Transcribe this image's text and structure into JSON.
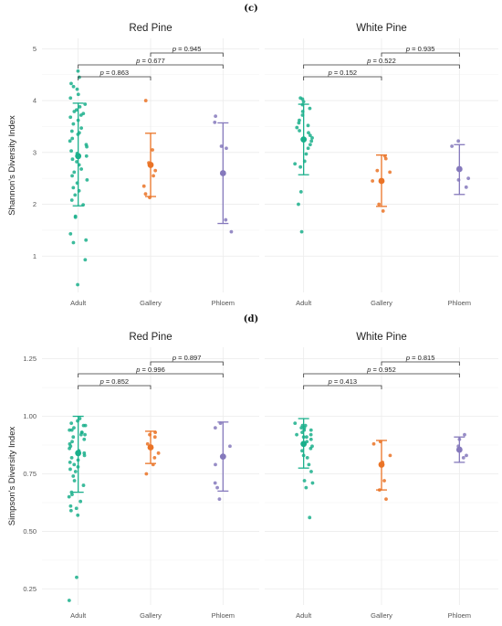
{
  "colors": {
    "Adult": "#1aaf8b",
    "Gallery": "#ea7326",
    "Phloem": "#8579bc",
    "grid": "#ebebeb",
    "bracket": "#333333"
  },
  "chart_data": [
    {
      "type": "scatter",
      "panel_label": "(c)",
      "ylabel": "Shannon's Diversity Index",
      "ylim": [
        0.3,
        5.2
      ],
      "yticks": [
        1,
        2,
        3,
        4,
        5
      ],
      "categories": [
        "Adult",
        "Gallery",
        "Phloem"
      ],
      "facets": [
        {
          "title": "Red Pine",
          "groups": [
            {
              "name": "Adult",
              "mean": 2.93,
              "lower": 1.97,
              "upper": 3.95,
              "points": [
                4.57,
                4.45,
                4.33,
                4.27,
                4.22,
                4.12,
                4.05,
                3.93,
                3.88,
                3.82,
                3.79,
                3.75,
                3.72,
                3.68,
                3.62,
                3.55,
                3.47,
                3.41,
                3.38,
                3.35,
                3.27,
                3.22,
                3.15,
                3.11,
                3.03,
                2.98,
                2.93,
                2.87,
                2.82,
                2.76,
                2.68,
                2.62,
                2.55,
                2.47,
                2.41,
                2.32,
                2.26,
                2.18,
                2.08,
                1.99,
                1.77,
                1.75,
                1.43,
                1.31,
                1.26,
                0.93,
                0.45
              ]
            },
            {
              "name": "Gallery",
              "mean": 2.76,
              "lower": 2.15,
              "upper": 3.37,
              "points": [
                4.0,
                3.05,
                2.8,
                2.65,
                2.55,
                2.35,
                2.2,
                2.13
              ]
            },
            {
              "name": "Phloem",
              "mean": 2.6,
              "lower": 1.63,
              "upper": 3.57,
              "points": [
                3.7,
                3.58,
                3.12,
                3.08,
                1.7,
                1.47
              ]
            }
          ],
          "brackets": [
            {
              "from": "Adult",
              "to": "Gallery",
              "p": "0.863"
            },
            {
              "from": "Adult",
              "to": "Phloem",
              "p": "0.677"
            },
            {
              "from": "Gallery",
              "to": "Phloem",
              "p": "0.945"
            }
          ]
        },
        {
          "title": "White Pine",
          "groups": [
            {
              "name": "Adult",
              "mean": 3.25,
              "lower": 2.57,
              "upper": 3.93,
              "points": [
                4.05,
                4.03,
                3.98,
                3.92,
                3.85,
                3.79,
                3.72,
                3.62,
                3.57,
                3.52,
                3.48,
                3.42,
                3.38,
                3.33,
                3.28,
                3.22,
                3.15,
                3.08,
                2.97,
                2.83,
                2.78,
                2.72,
                2.24,
                2.0,
                1.47
              ]
            },
            {
              "name": "Gallery",
              "mean": 2.45,
              "lower": 1.96,
              "upper": 2.95,
              "points": [
                2.93,
                2.88,
                2.65,
                2.62,
                2.45,
                2.0,
                1.87
              ]
            },
            {
              "name": "Phloem",
              "mean": 2.68,
              "lower": 2.19,
              "upper": 3.15,
              "points": [
                3.22,
                3.12,
                2.5,
                2.47,
                2.33
              ]
            }
          ],
          "brackets": [
            {
              "from": "Adult",
              "to": "Gallery",
              "p": "0.152"
            },
            {
              "from": "Adult",
              "to": "Phloem",
              "p": "0.522"
            },
            {
              "from": "Gallery",
              "to": "Phloem",
              "p": "0.935"
            }
          ]
        }
      ]
    },
    {
      "type": "scatter",
      "panel_label": "(d)",
      "ylabel": "Simpson's Diversity Index",
      "ylim": [
        0.18,
        1.3
      ],
      "yticks": [
        0.25,
        0.5,
        0.75,
        1.0,
        1.25
      ],
      "ytick_labels": [
        "0.25",
        "0.50",
        "0.75",
        "1.00",
        "1.25"
      ],
      "categories": [
        "Adult",
        "Gallery",
        "Phloem"
      ],
      "facets": [
        {
          "title": "Red Pine",
          "groups": [
            {
              "name": "Adult",
              "mean": 0.84,
              "lower": 0.67,
              "upper": 1.0,
              "points": [
                0.99,
                0.98,
                0.97,
                0.96,
                0.96,
                0.95,
                0.94,
                0.94,
                0.93,
                0.93,
                0.92,
                0.92,
                0.91,
                0.9,
                0.89,
                0.88,
                0.87,
                0.86,
                0.85,
                0.84,
                0.83,
                0.82,
                0.81,
                0.8,
                0.79,
                0.78,
                0.77,
                0.76,
                0.74,
                0.72,
                0.7,
                0.67,
                0.66,
                0.65,
                0.63,
                0.61,
                0.6,
                0.59,
                0.57,
                0.3,
                0.2
              ]
            },
            {
              "name": "Gallery",
              "mean": 0.865,
              "lower": 0.795,
              "upper": 0.935,
              "points": [
                0.93,
                0.92,
                0.91,
                0.88,
                0.84,
                0.82,
                0.79,
                0.75
              ]
            },
            {
              "name": "Phloem",
              "mean": 0.825,
              "lower": 0.675,
              "upper": 0.975,
              "points": [
                0.97,
                0.95,
                0.87,
                0.79,
                0.71,
                0.69,
                0.64
              ]
            }
          ],
          "brackets": [
            {
              "from": "Adult",
              "to": "Gallery",
              "p": "0.852"
            },
            {
              "from": "Adult",
              "to": "Phloem",
              "p": "0.996"
            },
            {
              "from": "Gallery",
              "to": "Phloem",
              "p": "0.897"
            }
          ]
        },
        {
          "title": "White Pine",
          "groups": [
            {
              "name": "Adult",
              "mean": 0.88,
              "lower": 0.775,
              "upper": 0.99,
              "points": [
                0.97,
                0.96,
                0.96,
                0.95,
                0.95,
                0.94,
                0.94,
                0.93,
                0.92,
                0.92,
                0.91,
                0.91,
                0.9,
                0.89,
                0.88,
                0.87,
                0.86,
                0.85,
                0.83,
                0.82,
                0.79,
                0.76,
                0.72,
                0.71,
                0.69,
                0.56
              ]
            },
            {
              "name": "Gallery",
              "mean": 0.79,
              "lower": 0.68,
              "upper": 0.895,
              "points": [
                0.89,
                0.88,
                0.83,
                0.8,
                0.72,
                0.68,
                0.64
              ]
            },
            {
              "name": "Phloem",
              "mean": 0.855,
              "lower": 0.8,
              "upper": 0.91,
              "points": [
                0.92,
                0.9,
                0.87,
                0.83,
                0.82
              ]
            }
          ],
          "brackets": [
            {
              "from": "Adult",
              "to": "Gallery",
              "p": "0.413"
            },
            {
              "from": "Adult",
              "to": "Phloem",
              "p": "0.952"
            },
            {
              "from": "Gallery",
              "to": "Phloem",
              "p": "0.815"
            }
          ]
        }
      ]
    }
  ]
}
